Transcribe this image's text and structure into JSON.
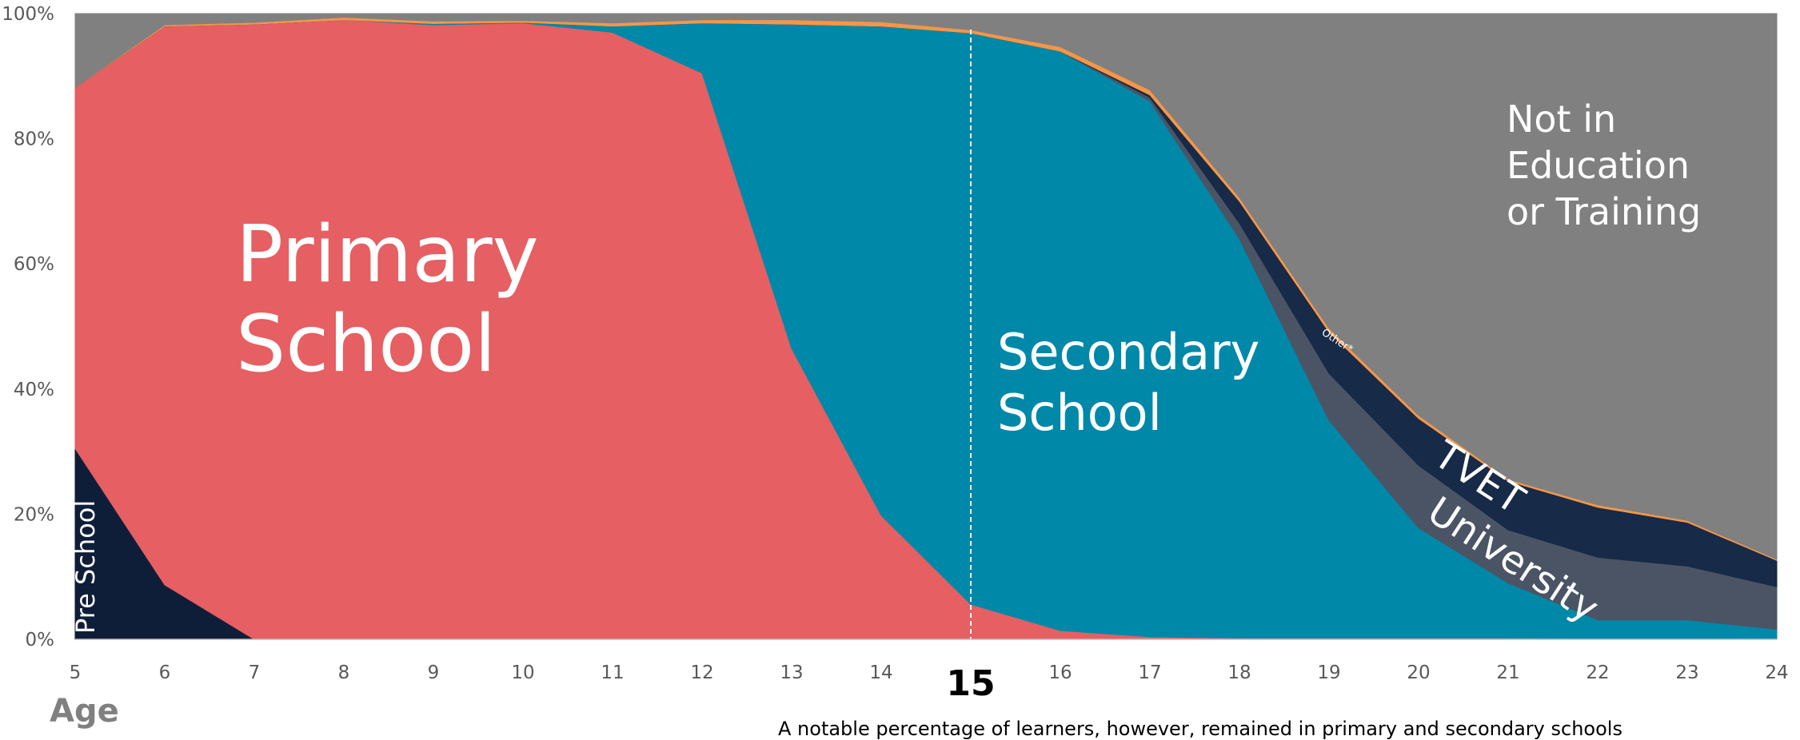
{
  "colors": {
    "pre_school": "#0f1e38",
    "primary_school": "#e55f63",
    "secondary_school": "#0088a9",
    "university": "#4a5465",
    "tvet": "#172a48",
    "other": "#f79646",
    "not_in_education": "#808080",
    "tick_text": "#595959",
    "axis": "#bfbfbf"
  },
  "chart_data": {
    "type": "area",
    "stacked": true,
    "normalized": true,
    "x": [
      5,
      6,
      7,
      8,
      9,
      10,
      11,
      12,
      13,
      14,
      15,
      16,
      17,
      18,
      19,
      20,
      21,
      22,
      23,
      24
    ],
    "xlabel": "Age",
    "ylabel": "",
    "ylim": [
      0,
      100
    ],
    "yticks": [
      "0%",
      "20%",
      "40%",
      "60%",
      "80%",
      "100%"
    ],
    "highlight_x": 15,
    "highlight_label": "15",
    "series": [
      {
        "name": "Pre School",
        "label": "Pre School",
        "color_key": "pre_school",
        "values": [
          30.5,
          8.7,
          0,
          0,
          0,
          0,
          0,
          0,
          0,
          0,
          0,
          0,
          0,
          0,
          0,
          0,
          0,
          0,
          0,
          0
        ]
      },
      {
        "name": "Primary School",
        "label": "Primary School",
        "color_key": "primary_school",
        "values": [
          57.7,
          89.3,
          98.3,
          99.0,
          98.2,
          98.5,
          97.0,
          90.5,
          46.5,
          19.8,
          5.6,
          1.4,
          0.4,
          0.2,
          0.2,
          0.2,
          0.2,
          0.1,
          0.1,
          0.1
        ]
      },
      {
        "name": "Secondary School",
        "label": "Secondary School",
        "color_key": "secondary_school",
        "values": [
          0,
          0,
          0,
          0,
          0.2,
          0.1,
          1.0,
          8.0,
          51.8,
          78.2,
          91.3,
          92.6,
          85.6,
          63.8,
          34.8,
          17.6,
          8.8,
          3.0,
          3.0,
          1.5
        ]
      },
      {
        "name": "University",
        "label": "University",
        "color_key": "university",
        "values": [
          0,
          0,
          0,
          0,
          0,
          0,
          0,
          0,
          0,
          0,
          0,
          0,
          0.6,
          2.5,
          7.5,
          10.0,
          8.5,
          10.0,
          8.6,
          6.8
        ]
      },
      {
        "name": "TVET",
        "label": "TVET",
        "color_key": "tvet",
        "values": [
          0,
          0,
          0,
          0,
          0,
          0,
          0,
          0,
          0,
          0,
          0,
          0,
          0.4,
          3.5,
          6.6,
          7.5,
          7.8,
          8.0,
          7.0,
          4.2
        ]
      },
      {
        "name": "Other",
        "label": "Other*",
        "color_key": "other",
        "values": [
          0,
          0.2,
          0.3,
          0.4,
          0.4,
          0.3,
          0.5,
          0.5,
          0.7,
          0.7,
          0.5,
          0.7,
          0.8,
          0.6,
          0.6,
          0.5,
          0.3,
          0.4,
          0.3,
          0.2
        ]
      },
      {
        "name": "Not in Education or Training",
        "label": "Not in Education or Training",
        "color_key": "not_in_education",
        "values": [
          11.8,
          1.8,
          1.4,
          0.6,
          1.2,
          1.1,
          1.5,
          1.0,
          1.0,
          1.3,
          2.6,
          5.3,
          12.2,
          29.4,
          50.3,
          64.2,
          74.4,
          78.5,
          81.0,
          87.2
        ]
      }
    ]
  },
  "labels": {
    "primary": [
      "Primary",
      "School"
    ],
    "secondary": [
      "Secondary",
      "School"
    ],
    "not_in_education": [
      "Not in",
      "Education",
      "or Training"
    ],
    "tvet": "TVET",
    "university": "University",
    "pre_school": "Pre School",
    "other": "Other*"
  },
  "note": "A notable percentage of learners, however, remained in primary and secondary schools"
}
